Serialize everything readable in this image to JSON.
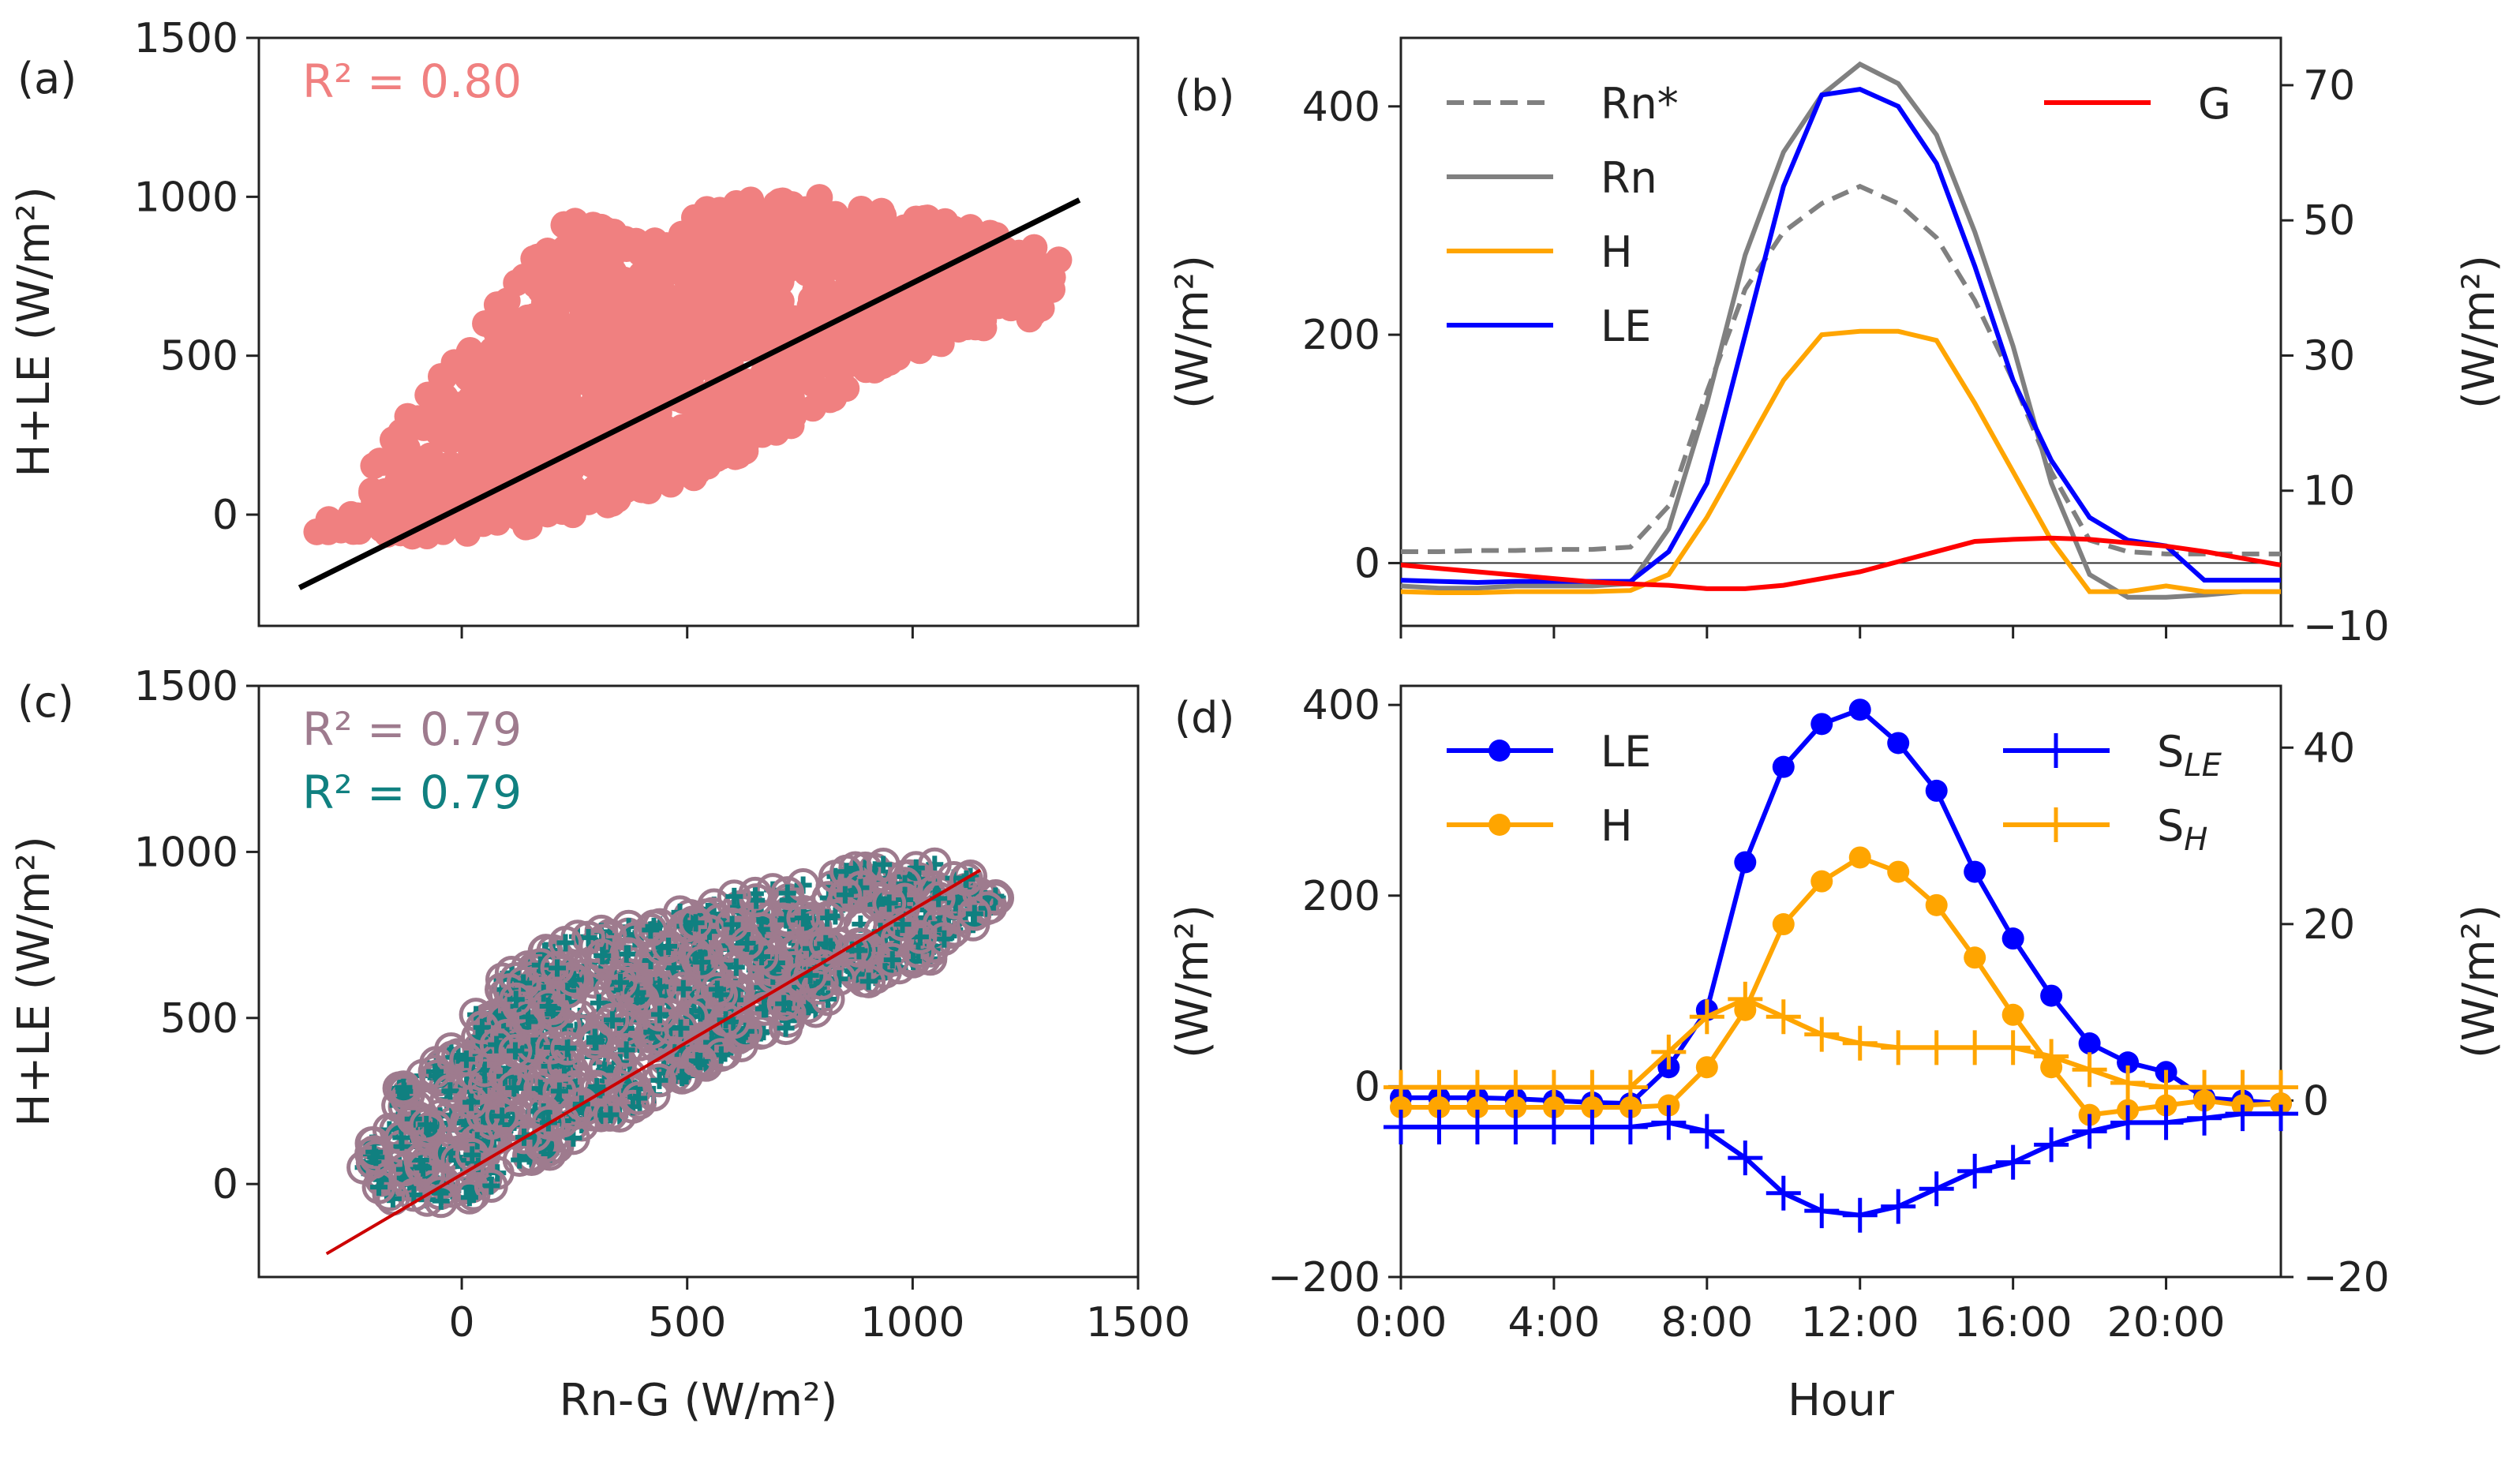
{
  "figure": {
    "panels": {
      "a": {
        "label": "(a)"
      },
      "b": {
        "label": "(b)"
      },
      "c": {
        "label": "(c)"
      },
      "d": {
        "label": "(d)"
      }
    }
  },
  "chart_data": [
    {
      "id": "a",
      "type": "scatter",
      "xlabel": "",
      "ylabel": "H+LE (W/m²)",
      "xlim": [
        -450,
        1500
      ],
      "ylim": [
        -350,
        1500
      ],
      "xticks": [
        0,
        500,
        1000
      ],
      "yticks": [
        0,
        500,
        1000,
        1500
      ],
      "annotation": "R² = 0.80",
      "annotation_color": "#f08080",
      "point_color": "#f08080",
      "fit_line": {
        "x": [
          -360,
          1370
        ],
        "y": [
          -230,
          990
        ],
        "color": "#000000"
      },
      "cloud_polygon_data": [
        [
          -380,
          -40
        ],
        [
          -200,
          20
        ],
        [
          -200,
          200
        ],
        [
          -100,
          350
        ],
        [
          50,
          600
        ],
        [
          150,
          820
        ],
        [
          230,
          930
        ],
        [
          350,
          910
        ],
        [
          450,
          850
        ],
        [
          550,
          990
        ],
        [
          800,
          1000
        ],
        [
          1000,
          950
        ],
        [
          1200,
          880
        ],
        [
          1350,
          800
        ],
        [
          1280,
          620
        ],
        [
          1100,
          560
        ],
        [
          900,
          420
        ],
        [
          700,
          250
        ],
        [
          500,
          100
        ],
        [
          300,
          20
        ],
        [
          100,
          -60
        ],
        [
          -100,
          -70
        ],
        [
          -300,
          -60
        ]
      ]
    },
    {
      "id": "b",
      "type": "line",
      "xlabel": "",
      "ylabel": "(W/m²)",
      "y2label": "(W/m²)",
      "xlim": [
        0,
        23
      ],
      "ylim": [
        -55,
        460
      ],
      "y2lim": [
        -10,
        77
      ],
      "xticks": [
        0,
        4,
        8,
        12,
        16,
        20
      ],
      "yticks": [
        0,
        200,
        400
      ],
      "y2ticks": [
        -10,
        10,
        30,
        50,
        70
      ],
      "x": [
        0,
        1,
        2,
        3,
        4,
        5,
        6,
        7,
        8,
        9,
        10,
        11,
        12,
        13,
        14,
        15,
        16,
        17,
        18,
        19,
        20,
        21,
        22,
        23
      ],
      "series": [
        {
          "name": "Rn*",
          "color": "#808080",
          "dash": true,
          "axis": "left",
          "values": [
            10,
            10,
            11,
            11,
            12,
            12,
            14,
            50,
            150,
            240,
            290,
            315,
            330,
            315,
            285,
            230,
            160,
            80,
            20,
            10,
            8,
            8,
            8,
            8
          ]
        },
        {
          "name": "Rn",
          "color": "#808080",
          "dash": false,
          "axis": "left",
          "values": [
            -20,
            -22,
            -22,
            -20,
            -20,
            -20,
            -18,
            30,
            140,
            270,
            360,
            410,
            437,
            420,
            375,
            290,
            190,
            70,
            -10,
            -30,
            -30,
            -28,
            -25,
            -25
          ]
        },
        {
          "name": "H",
          "color": "#ffa500",
          "dash": false,
          "axis": "left",
          "values": [
            -25,
            -26,
            -26,
            -25,
            -25,
            -25,
            -24,
            -10,
            40,
            100,
            160,
            200,
            203,
            203,
            195,
            140,
            80,
            20,
            -25,
            -25,
            -20,
            -25,
            -25,
            -25
          ]
        },
        {
          "name": "LE",
          "color": "#0000ff",
          "dash": false,
          "axis": "left",
          "values": [
            -15,
            -16,
            -17,
            -16,
            -16,
            -16,
            -16,
            10,
            70,
            200,
            330,
            410,
            415,
            400,
            350,
            260,
            160,
            90,
            40,
            20,
            15,
            -15,
            -15,
            -15
          ]
        },
        {
          "name": "G",
          "color": "#ff0000",
          "dash": false,
          "axis": "right",
          "values": [
            -1,
            -1.5,
            -2,
            -2.5,
            -3,
            -3.5,
            -3.8,
            -4,
            -4.5,
            -4.5,
            -4,
            -3,
            -2,
            -0.5,
            1,
            2.5,
            2.8,
            3,
            2.8,
            2.3,
            1.8,
            1,
            0,
            -1
          ]
        }
      ]
    },
    {
      "id": "c",
      "type": "scatter",
      "xlabel": "Rn-G (W/m²)",
      "ylabel": "H+LE (W/m²)",
      "xlim": [
        -450,
        1500
      ],
      "ylim": [
        -280,
        1500
      ],
      "xticks": [
        0,
        500,
        1000,
        1500
      ],
      "yticks": [
        0,
        500,
        1000,
        1500
      ],
      "annotations": [
        {
          "text": "R² = 0.79",
          "color": "#9e7b8e"
        },
        {
          "text": "R² = 0.79",
          "color": "#108080"
        }
      ],
      "circle_color": "#9e7b8e",
      "plus_color": "#108080",
      "fit_line": {
        "x": [
          -300,
          1150
        ],
        "y": [
          -210,
          945
        ],
        "color": "#cc0000"
      },
      "cloud_polygon_data": [
        [
          -230,
          20
        ],
        [
          -150,
          300
        ],
        [
          0,
          450
        ],
        [
          100,
          650
        ],
        [
          250,
          750
        ],
        [
          450,
          820
        ],
        [
          650,
          880
        ],
        [
          900,
          960
        ],
        [
          1100,
          980
        ],
        [
          1200,
          850
        ],
        [
          1050,
          680
        ],
        [
          850,
          560
        ],
        [
          650,
          420
        ],
        [
          450,
          280
        ],
        [
          250,
          130
        ],
        [
          100,
          20
        ],
        [
          0,
          -60
        ],
        [
          -150,
          -50
        ]
      ]
    },
    {
      "id": "d",
      "type": "line",
      "xlabel": "Hour",
      "ylabel": "(W/m²)",
      "y2label": "(W/m²)",
      "xlim": [
        0,
        23
      ],
      "ylim": [
        -200,
        420
      ],
      "y2lim": [
        -20,
        47
      ],
      "xticks": [
        0,
        4,
        8,
        12,
        16,
        20
      ],
      "xticklabels": [
        "0:00",
        "4:00",
        "8:00",
        "12:00",
        "16:00",
        "20:00"
      ],
      "yticks": [
        -200,
        0,
        200,
        400
      ],
      "y2ticks": [
        -20,
        0,
        20,
        40
      ],
      "x": [
        0,
        1,
        2,
        3,
        4,
        5,
        6,
        7,
        8,
        9,
        10,
        11,
        12,
        13,
        14,
        15,
        16,
        17,
        18,
        19,
        20,
        21,
        22,
        23
      ],
      "series": [
        {
          "name": "LE",
          "color": "#0000ff",
          "marker": "circle",
          "axis": "left",
          "values": [
            -12,
            -12,
            -12,
            -13,
            -15,
            -17,
            -18,
            20,
            80,
            235,
            335,
            380,
            395,
            360,
            310,
            225,
            155,
            95,
            45,
            25,
            15,
            -12,
            -15,
            -18
          ]
        },
        {
          "name": "H",
          "color": "#ffa500",
          "marker": "circle",
          "axis": "left",
          "values": [
            -22,
            -22,
            -22,
            -22,
            -22,
            -22,
            -22,
            -20,
            20,
            80,
            170,
            215,
            240,
            225,
            190,
            135,
            75,
            20,
            -30,
            -25,
            -20,
            -15,
            -20,
            -18
          ]
        },
        {
          "name": "S_LE",
          "name_base": "S",
          "name_sub": "LE",
          "color": "#0000ff",
          "marker": "plus",
          "axis": "right",
          "values": [
            -3,
            -3,
            -3,
            -3,
            -3,
            -3,
            -3,
            -2.5,
            -3.5,
            -6.5,
            -10.5,
            -12.5,
            -13,
            -12,
            -10,
            -8,
            -7,
            -5,
            -3.5,
            -2.5,
            -2.5,
            -2,
            -1.5,
            -1.5
          ]
        },
        {
          "name": "S_H",
          "name_base": "S",
          "name_sub": "H",
          "color": "#ffa500",
          "marker": "plus",
          "axis": "right",
          "values": [
            1.5,
            1.5,
            1.5,
            1.5,
            1.5,
            1.5,
            1.5,
            5.5,
            9.5,
            11.5,
            9.5,
            7.5,
            6.5,
            6,
            6,
            6,
            6,
            5,
            3.5,
            2,
            1.5,
            1.5,
            1.5,
            1.5
          ]
        }
      ]
    }
  ]
}
